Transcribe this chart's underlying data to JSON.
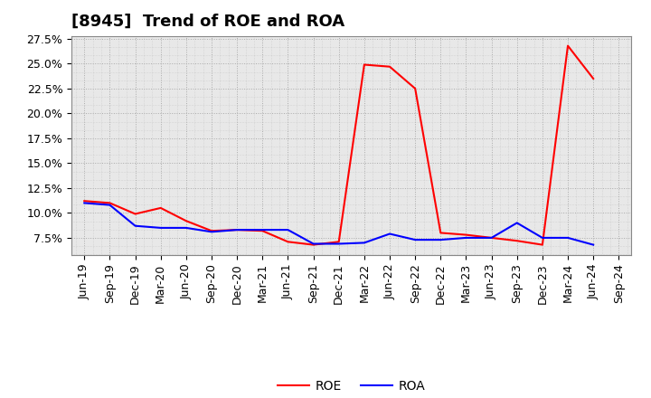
{
  "title": "[8945]  Trend of ROE and ROA",
  "x_labels": [
    "Jun-19",
    "Sep-19",
    "Dec-19",
    "Mar-20",
    "Jun-20",
    "Sep-20",
    "Dec-20",
    "Mar-21",
    "Jun-21",
    "Sep-21",
    "Dec-21",
    "Mar-22",
    "Jun-22",
    "Sep-22",
    "Dec-22",
    "Mar-23",
    "Jun-23",
    "Sep-23",
    "Dec-23",
    "Mar-24",
    "Jun-24",
    "Sep-24"
  ],
  "roe": [
    11.2,
    11.0,
    9.9,
    10.5,
    9.2,
    8.2,
    8.3,
    8.2,
    7.1,
    6.8,
    7.1,
    24.9,
    24.7,
    22.5,
    8.0,
    7.8,
    7.5,
    7.2,
    6.8,
    26.8,
    23.5,
    null
  ],
  "roa": [
    11.0,
    10.8,
    8.7,
    8.5,
    8.5,
    8.1,
    8.3,
    8.3,
    8.3,
    6.9,
    6.9,
    7.0,
    7.9,
    7.3,
    7.3,
    7.5,
    7.5,
    9.0,
    7.5,
    7.5,
    6.8,
    null
  ],
  "roe_color": "#ff0000",
  "roa_color": "#0000ff",
  "background_color": "#ffffff",
  "plot_bg_color": "#e8e8e8",
  "grid_color": "#aaaaaa",
  "ylim_min": 5.8,
  "ylim_max": 27.5,
  "yticks": [
    7.5,
    10.0,
    12.5,
    15.0,
    17.5,
    20.0,
    22.5,
    25.0,
    27.5
  ],
  "title_fontsize": 13,
  "legend_fontsize": 10,
  "tick_fontsize": 9
}
